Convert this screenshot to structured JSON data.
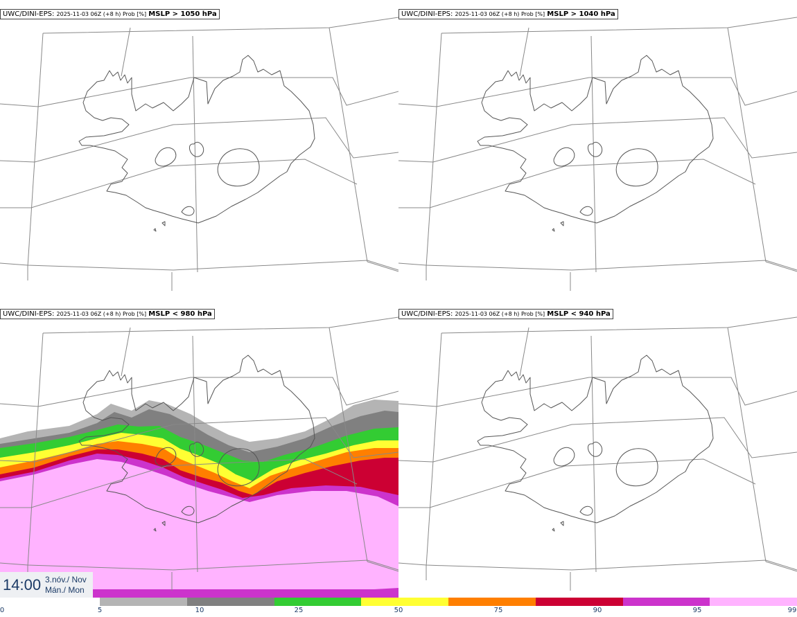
{
  "panels": [
    {
      "model": "UWC/DINI-EPS",
      "meta": "2025-11-03 06Z (+8 h) Prob [%]",
      "field": "MSLP > 1050 hPa"
    },
    {
      "model": "UWC/DINI-EPS",
      "meta": "2025-11-03 06Z (+8 h) Prob [%]",
      "field": "MSLP > 1040 hPa"
    },
    {
      "model": "UWC/DINI-EPS",
      "meta": "2025-11-03 06Z (+8 h) Prob [%]",
      "field": "MSLP < 980 hPa"
    },
    {
      "model": "UWC/DINI-EPS",
      "meta": "2025-11-03 06Z (+8 h) Prob [%]",
      "field": "MSLP < 940 hPa"
    }
  ],
  "time": {
    "clock": "14:00",
    "date_line1": "3.nóv./ Nov",
    "date_line2": "Mán./ Mon"
  },
  "colorbar": {
    "ticks": [
      "0",
      "5",
      "10",
      "25",
      "50",
      "75",
      "90",
      "95",
      "99"
    ],
    "colors": [
      "#b4b4b4",
      "#808080",
      "#33cc33",
      "#ffff33",
      "#ff7f00",
      "#cc0033",
      "#cc33cc",
      "#ffb3ff"
    ]
  },
  "colors": {
    "coast": "#555555",
    "grid": "#888888"
  }
}
